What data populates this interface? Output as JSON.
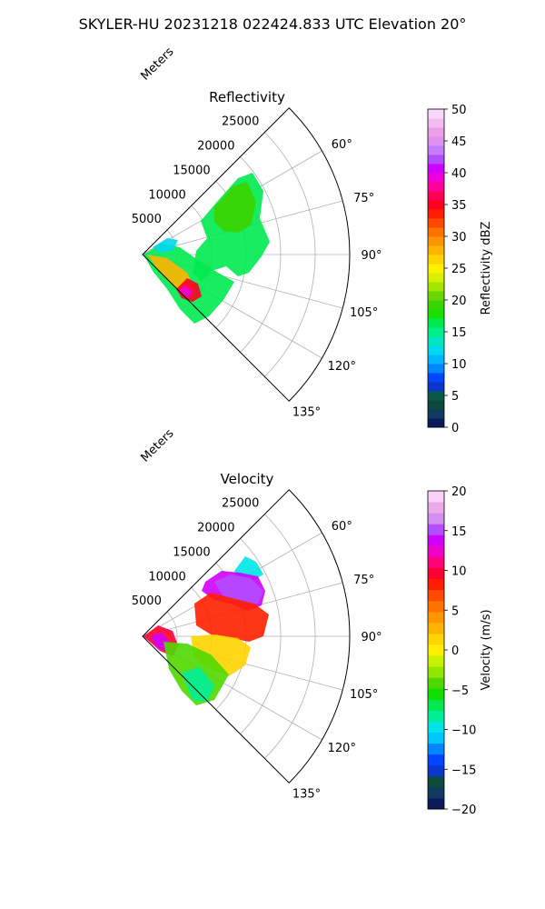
{
  "figure_title": "SKYLER-HU  20231218  022424.833 UTC Elevation 20°",
  "chart_data": [
    {
      "type": "heatmap",
      "title": "Reflectivity",
      "radial_label": "Meters",
      "r_ticks": [
        "5000",
        "10000",
        "15000",
        "20000",
        "25000"
      ],
      "r_values": [
        5000,
        10000,
        15000,
        20000,
        25000
      ],
      "rlim": [
        0,
        30000
      ],
      "theta_ticks": [
        "60°",
        "75°",
        "90°",
        "105°",
        "120°",
        "135°"
      ],
      "theta_values": [
        60,
        75,
        90,
        105,
        120,
        135
      ],
      "theta_range": [
        45,
        135
      ],
      "grid": true,
      "colorbar": {
        "label": "Reflectivity dBZ",
        "range": [
          0,
          50
        ],
        "ticks": [
          "0",
          "5",
          "10",
          "15",
          "20",
          "25",
          "30",
          "35",
          "40",
          "45",
          "50"
        ],
        "colors": [
          "#0b1a5a",
          "#103b5e",
          "#0d4a3c",
          "#0a5a4a",
          "#0a36cc",
          "#0046ff",
          "#0087ff",
          "#00b8ff",
          "#00d8ee",
          "#00e6c0",
          "#00ee8a",
          "#00ea4f",
          "#18e000",
          "#3ad400",
          "#6ad800",
          "#a2e600",
          "#d8f000",
          "#ffef00",
          "#ffd400",
          "#ffb400",
          "#ff9600",
          "#ff7200",
          "#ff4a00",
          "#ff1f00",
          "#ff0022",
          "#ff0055",
          "#ff0099",
          "#f000d8",
          "#d000ff",
          "#b44cff",
          "#c47cff",
          "#e090f0",
          "#ec9ee6",
          "#f4bcf4",
          "#fad8fa"
        ]
      }
    },
    {
      "type": "heatmap",
      "title": "Velocity",
      "radial_label": "Meters",
      "r_ticks": [
        "5000",
        "10000",
        "15000",
        "20000",
        "25000"
      ],
      "r_values": [
        5000,
        10000,
        15000,
        20000,
        25000
      ],
      "rlim": [
        0,
        30000
      ],
      "theta_ticks": [
        "60°",
        "75°",
        "90°",
        "105°",
        "120°",
        "135°"
      ],
      "theta_values": [
        60,
        75,
        90,
        105,
        120,
        135
      ],
      "theta_range": [
        45,
        135
      ],
      "grid": true,
      "colorbar": {
        "label": "Velocity (m/s)",
        "range": [
          -20,
          20
        ],
        "ticks": [
          "−20",
          "−15",
          "−10",
          "−5",
          "0",
          "5",
          "10",
          "15",
          "20"
        ],
        "colors": [
          "#0b1a5a",
          "#103b5e",
          "#0d4a3c",
          "#0a36cc",
          "#0046ff",
          "#0087ff",
          "#00c8ff",
          "#00e6e6",
          "#00ee9a",
          "#00ea4f",
          "#10e000",
          "#50d800",
          "#90e600",
          "#c8f000",
          "#ffef00",
          "#ffd400",
          "#ffb400",
          "#ff9600",
          "#ff7200",
          "#ff4a00",
          "#ff1f00",
          "#ff0033",
          "#ff0077",
          "#f000c8",
          "#d000ff",
          "#b44cff",
          "#d28ef0",
          "#ecaae8",
          "#f8d0f8"
        ]
      }
    }
  ]
}
